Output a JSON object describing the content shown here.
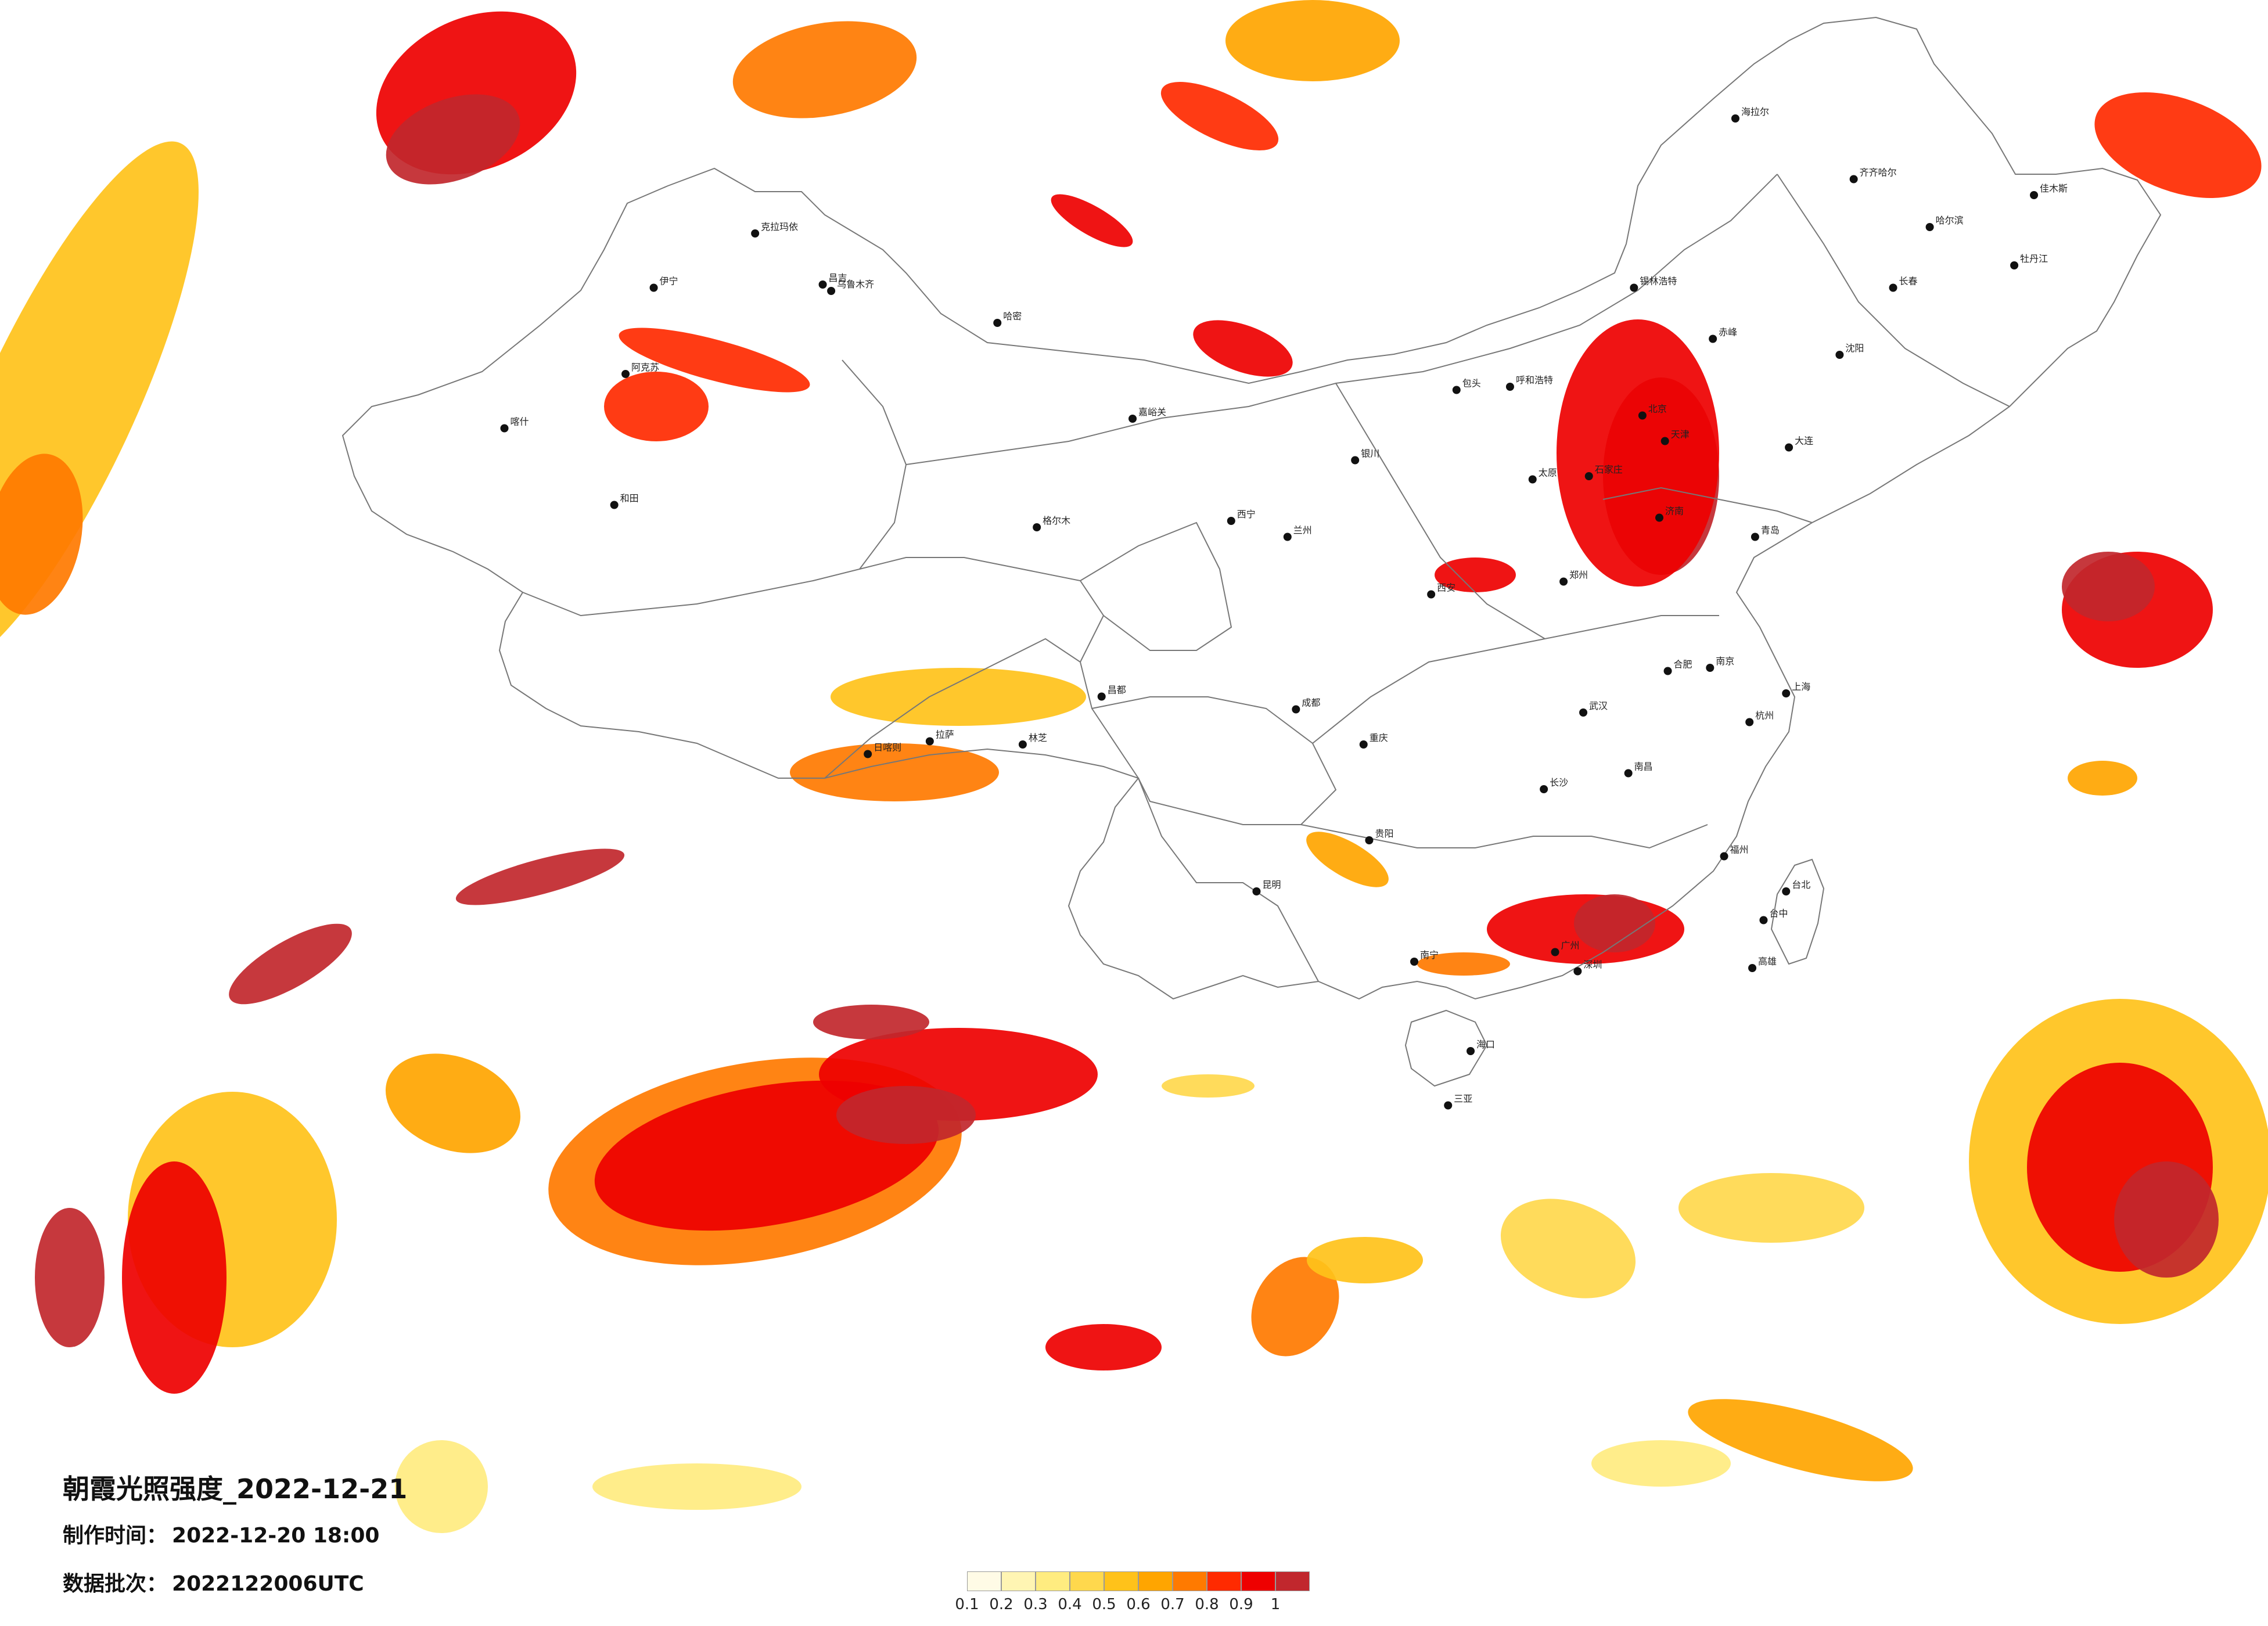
{
  "map": {
    "title": "朝霞光照强度_2022-12-21",
    "made_time_label": "制作时间：",
    "made_time_value": "2022-12-20 18:00",
    "batch_label": "数据批次：",
    "batch_value": "2022122006UTC"
  },
  "legend": {
    "colors": [
      "#fffbe6",
      "#fff5b3",
      "#ffec80",
      "#ffd84d",
      "#ffc21a",
      "#ffa500",
      "#ff7a00",
      "#ff2a00",
      "#ee0000",
      "#c1272d"
    ],
    "ticks": [
      "0.1",
      "0.2",
      "0.3",
      "0.4",
      "0.5",
      "0.6",
      "0.7",
      "0.8",
      "0.9",
      "1"
    ]
  },
  "cities": [
    {
      "name": "克拉玛依",
      "lon": 84.9,
      "lat": 45.6
    },
    {
      "name": "昌吉",
      "lon": 87.3,
      "lat": 44.0
    },
    {
      "name": "乌鲁木齐",
      "lon": 87.6,
      "lat": 43.8
    },
    {
      "name": "伊宁",
      "lon": 81.3,
      "lat": 43.9
    },
    {
      "name": "阿克苏",
      "lon": 80.3,
      "lat": 41.2
    },
    {
      "name": "喀什",
      "lon": 76.0,
      "lat": 39.5
    },
    {
      "name": "和田",
      "lon": 79.9,
      "lat": 37.1
    },
    {
      "name": "哈密",
      "lon": 93.5,
      "lat": 42.8
    },
    {
      "name": "嘉峪关",
      "lon": 98.3,
      "lat": 39.8
    },
    {
      "name": "格尔木",
      "lon": 94.9,
      "lat": 36.4
    },
    {
      "name": "西宁",
      "lon": 101.8,
      "lat": 36.6
    },
    {
      "name": "兰州",
      "lon": 103.8,
      "lat": 36.1
    },
    {
      "name": "银川",
      "lon": 106.2,
      "lat": 38.5
    },
    {
      "name": "呼和浩特",
      "lon": 111.7,
      "lat": 40.8
    },
    {
      "name": "包头",
      "lon": 109.8,
      "lat": 40.7
    },
    {
      "name": "北京",
      "lon": 116.4,
      "lat": 39.9
    },
    {
      "name": "天津",
      "lon": 117.2,
      "lat": 39.1
    },
    {
      "name": "石家庄",
      "lon": 114.5,
      "lat": 38.0
    },
    {
      "name": "太原",
      "lon": 112.5,
      "lat": 37.9
    },
    {
      "name": "济南",
      "lon": 117.0,
      "lat": 36.7
    },
    {
      "name": "青岛",
      "lon": 120.4,
      "lat": 36.1
    },
    {
      "name": "郑州",
      "lon": 113.6,
      "lat": 34.7
    },
    {
      "name": "西安",
      "lon": 108.9,
      "lat": 34.3
    },
    {
      "name": "南京",
      "lon": 118.8,
      "lat": 32.0
    },
    {
      "name": "上海",
      "lon": 121.5,
      "lat": 31.2
    },
    {
      "name": "杭州",
      "lon": 120.2,
      "lat": 30.3
    },
    {
      "name": "合肥",
      "lon": 117.3,
      "lat": 31.9
    },
    {
      "name": "武汉",
      "lon": 114.3,
      "lat": 30.6
    },
    {
      "name": "长沙",
      "lon": 112.9,
      "lat": 28.2
    },
    {
      "name": "南昌",
      "lon": 115.9,
      "lat": 28.7
    },
    {
      "name": "福州",
      "lon": 119.3,
      "lat": 26.1
    },
    {
      "name": "广州",
      "lon": 113.3,
      "lat": 23.1
    },
    {
      "name": "深圳",
      "lon": 114.1,
      "lat": 22.5
    },
    {
      "name": "南宁",
      "lon": 108.3,
      "lat": 22.8
    },
    {
      "name": "海口",
      "lon": 110.3,
      "lat": 20.0
    },
    {
      "name": "三亚",
      "lon": 109.5,
      "lat": 18.3
    },
    {
      "name": "贵阳",
      "lon": 106.7,
      "lat": 26.6
    },
    {
      "name": "昆明",
      "lon": 102.7,
      "lat": 25.0
    },
    {
      "name": "成都",
      "lon": 104.1,
      "lat": 30.7
    },
    {
      "name": "重庆",
      "lon": 106.5,
      "lat": 29.6
    },
    {
      "name": "拉萨",
      "lon": 91.1,
      "lat": 29.7
    },
    {
      "name": "日喀则",
      "lon": 88.9,
      "lat": 29.3
    },
    {
      "name": "林芝",
      "lon": 94.4,
      "lat": 29.6
    },
    {
      "name": "昌都",
      "lon": 97.2,
      "lat": 31.1
    },
    {
      "name": "哈尔滨",
      "lon": 126.6,
      "lat": 45.8
    },
    {
      "name": "长春",
      "lon": 125.3,
      "lat": 43.9
    },
    {
      "name": "沈阳",
      "lon": 123.4,
      "lat": 41.8
    },
    {
      "name": "大连",
      "lon": 121.6,
      "lat": 38.9
    },
    {
      "name": "齐齐哈尔",
      "lon": 123.9,
      "lat": 47.3
    },
    {
      "name": "海拉尔",
      "lon": 119.7,
      "lat": 49.2
    },
    {
      "name": "佳木斯",
      "lon": 130.3,
      "lat": 46.8
    },
    {
      "name": "牡丹江",
      "lon": 129.6,
      "lat": 44.6
    },
    {
      "name": "锡林浩特",
      "lon": 116.1,
      "lat": 43.9
    },
    {
      "name": "赤峰",
      "lon": 118.9,
      "lat": 42.3
    },
    {
      "name": "台北",
      "lon": 121.5,
      "lat": 25.0
    },
    {
      "name": "台中",
      "lon": 120.7,
      "lat": 24.1
    },
    {
      "name": "高雄",
      "lon": 120.3,
      "lat": 22.6
    }
  ]
}
